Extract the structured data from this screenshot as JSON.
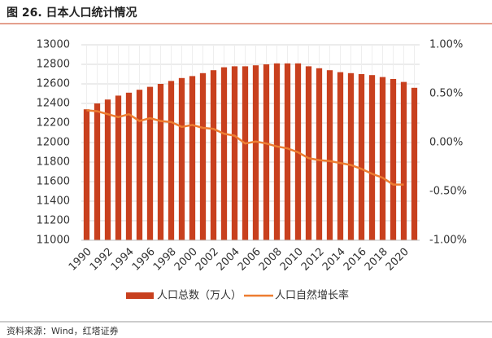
{
  "title": "图 26. 日本人口统计情况",
  "source": "资料来源：Wind，红塔证券",
  "chart_data": {
    "type": "bar",
    "categories": [
      "1990",
      null,
      "1992",
      null,
      "1994",
      null,
      "1996",
      null,
      "1998",
      null,
      "2000",
      null,
      "2002",
      null,
      "2004",
      null,
      "2006",
      null,
      "2008",
      null,
      "2010",
      null,
      "2012",
      null,
      "2014",
      null,
      "2016",
      null,
      "2018",
      null,
      "2020",
      null
    ],
    "series": [
      {
        "name": "人口总数（万人）",
        "type": "bar",
        "color": "#c8401e",
        "values": [
          12340,
          12400,
          12440,
          12480,
          12510,
          12540,
          12570,
          12600,
          12630,
          12660,
          12680,
          12710,
          12740,
          12770,
          12780,
          12780,
          12790,
          12800,
          12810,
          12810,
          12810,
          12780,
          12760,
          12740,
          12720,
          12710,
          12700,
          12690,
          12670,
          12650,
          12620,
          12560
        ]
      },
      {
        "name": "人口自然增长率",
        "type": "line",
        "axis": "y2",
        "color": "#ed7d31",
        "values": [
          0.33,
          0.32,
          0.29,
          0.26,
          0.29,
          0.22,
          0.25,
          0.22,
          0.21,
          0.16,
          0.18,
          0.15,
          0.14,
          0.09,
          0.07,
          -0.01,
          0.01,
          -0.01,
          -0.04,
          -0.06,
          -0.1,
          -0.16,
          -0.18,
          -0.19,
          -0.21,
          -0.23,
          -0.27,
          -0.32,
          -0.36,
          -0.43,
          -0.43,
          null
        ]
      }
    ],
    "ylim": [
      11000,
      13000
    ],
    "yticks": [
      11000,
      11200,
      11400,
      11600,
      11800,
      12000,
      12200,
      12400,
      12600,
      12800,
      13000
    ],
    "y2lim": [
      -1,
      1
    ],
    "y2ticks": [
      {
        "value": -1,
        "label": "-1.00%"
      },
      {
        "value": -0.5,
        "label": "-0.50%"
      },
      {
        "value": 0,
        "label": "0.00%"
      },
      {
        "value": 0.5,
        "label": "0.50%"
      },
      {
        "value": 1,
        "label": "1.00%"
      }
    ],
    "grid": true,
    "legend": "bottom"
  }
}
